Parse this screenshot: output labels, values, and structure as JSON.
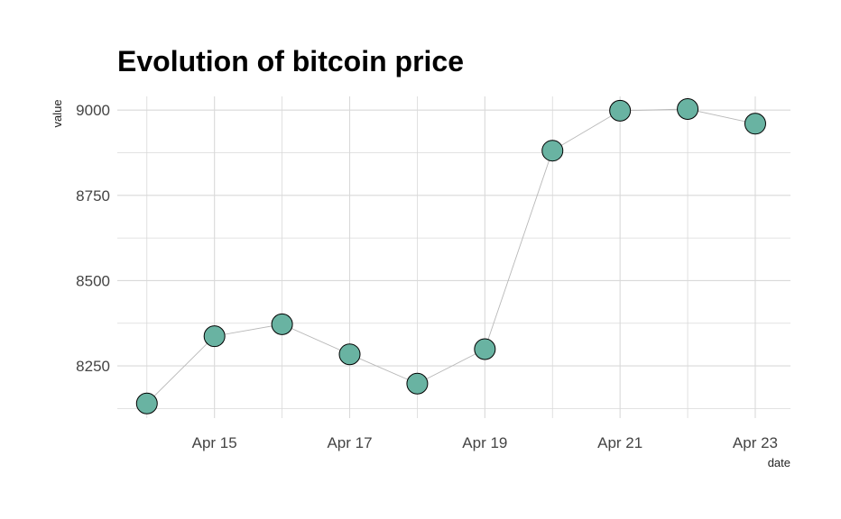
{
  "chart_data": {
    "type": "line",
    "title": "Evolution of bitcoin price",
    "xlabel": "date",
    "ylabel": "value",
    "x": [
      "2018-04-14",
      "2018-04-15",
      "2018-04-16",
      "2018-04-17",
      "2018-04-18",
      "2018-04-19",
      "2018-04-20",
      "2018-04-21",
      "2018-04-22",
      "2018-04-23"
    ],
    "series": [
      {
        "values": [
          8140,
          8337,
          8372,
          8284,
          8198,
          8299,
          8881,
          8998,
          9003,
          8960
        ]
      }
    ],
    "x_ticks": [
      {
        "x": "2018-04-15",
        "label": "Apr 15"
      },
      {
        "x": "2018-04-17",
        "label": "Apr 17"
      },
      {
        "x": "2018-04-19",
        "label": "Apr 19"
      },
      {
        "x": "2018-04-21",
        "label": "Apr 21"
      },
      {
        "x": "2018-04-23",
        "label": "Apr 23"
      }
    ],
    "y_ticks": [
      8250,
      8500,
      8750,
      9000
    ],
    "xlim": [
      "2018-04-13T13:30",
      "2018-04-23T12:30"
    ],
    "ylim": [
      8097,
      9040
    ],
    "grid": true,
    "colors": {
      "line": "#b8b8b8",
      "point_fill": "#69b3a2",
      "point_stroke": "#000000",
      "grid": "#d9d9d9"
    }
  }
}
